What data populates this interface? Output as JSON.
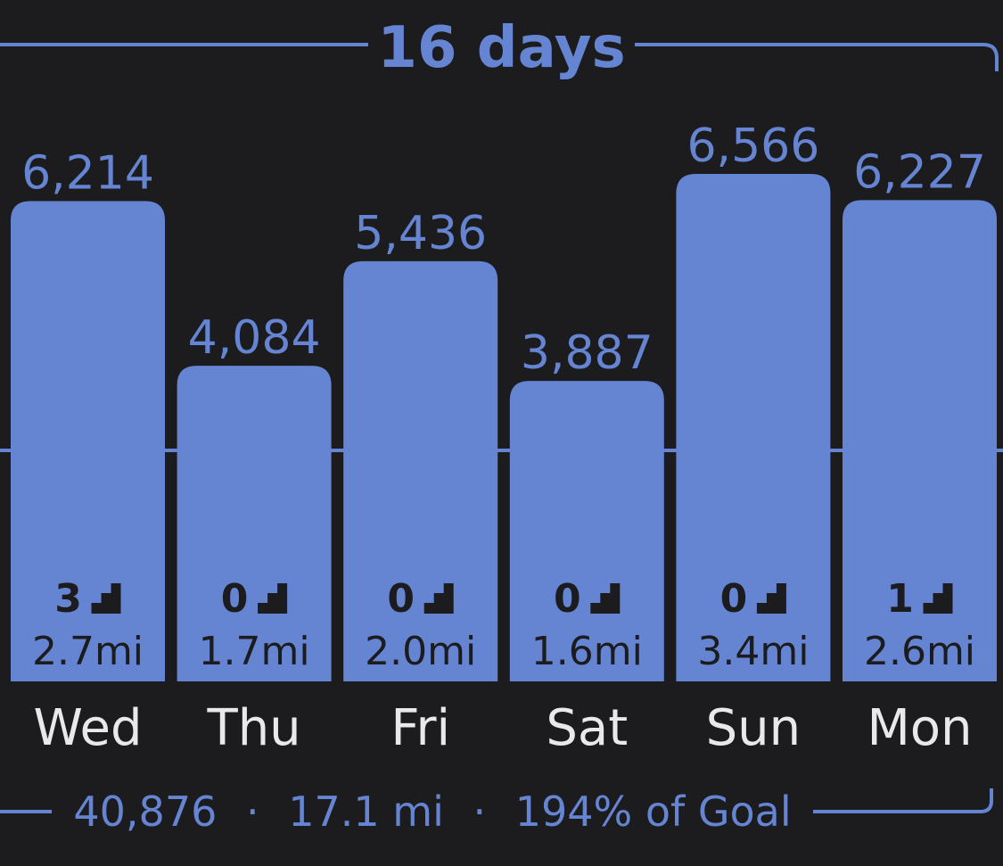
{
  "header": {
    "title": "16 days"
  },
  "footer": {
    "total_steps": "40,876",
    "total_distance": "17.1 mi",
    "goal_percent": "194% of Goal",
    "separator": "·"
  },
  "colors": {
    "background": "#1c1c1e",
    "bar": "#6584d2",
    "accent": "#6584d2",
    "day_label": "#e9e9eb",
    "inside_text": "#1c1c1e"
  },
  "icons": {
    "flights": "stairs-icon"
  },
  "chart_data": {
    "type": "bar",
    "categories": [
      "Wed",
      "Thu",
      "Fri",
      "Sat",
      "Sun",
      "Mon"
    ],
    "values": [
      6214,
      4084,
      5436,
      3887,
      6566,
      6227
    ],
    "value_labels": [
      "6,214",
      "4,084",
      "5,436",
      "3,887",
      "6,566",
      "6,227"
    ],
    "flights": [
      "3",
      "0",
      "0",
      "0",
      "0",
      "1"
    ],
    "distance_labels": [
      "2.7mi",
      "1.7mi",
      "2.0mi",
      "1.6mi",
      "3.4mi",
      "2.6mi"
    ],
    "goal_line": 3500,
    "ylim": [
      0,
      7100
    ],
    "grid": false,
    "legend": "none"
  }
}
